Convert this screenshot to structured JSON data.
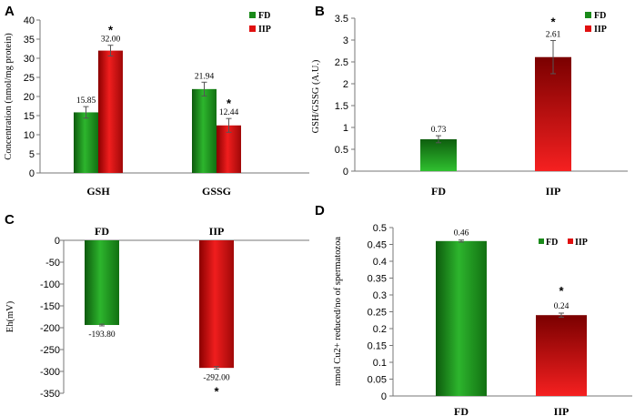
{
  "colors": {
    "fd": "#1a8a1a",
    "iip": "#e01010"
  },
  "chart_data": [
    {
      "panel": "A",
      "type": "bar",
      "categories": [
        "GSH",
        "GSSG"
      ],
      "series": [
        {
          "name": "FD",
          "values": [
            15.85,
            21.94
          ],
          "labels": [
            "15.85",
            "21.94"
          ],
          "errors": [
            1.5,
            1.8
          ]
        },
        {
          "name": "IIP",
          "values": [
            32.0,
            12.44
          ],
          "labels": [
            "32.00",
            "12.44"
          ],
          "errors": [
            1.4,
            1.8
          ]
        }
      ],
      "significance": [
        "*",
        "*"
      ],
      "ylabel": "Concentration (nmol/mg protein)",
      "ylim": [
        0,
        40
      ],
      "yticks": [
        "0",
        "5",
        "10",
        "15",
        "20",
        "25",
        "30",
        "35",
        "40"
      ],
      "legend": [
        "FD",
        "IIP"
      ]
    },
    {
      "panel": "B",
      "type": "bar",
      "categories": [
        "FD",
        "IIP"
      ],
      "values": [
        0.73,
        2.61
      ],
      "labels": [
        "0.73",
        "2.61"
      ],
      "errors": [
        0.08,
        0.38
      ],
      "significance": "*",
      "ylabel": "GSH/GSSG (A.U.)",
      "ylim": [
        0,
        3.5
      ],
      "yticks": [
        "0",
        "0.5",
        "1",
        "1.5",
        "2",
        "2.5",
        "3",
        "3.5"
      ],
      "legend": [
        "FD",
        "IIP"
      ]
    },
    {
      "panel": "C",
      "type": "bar",
      "categories": [
        "FD",
        "IIP"
      ],
      "values": [
        -193.8,
        -292.0
      ],
      "labels": [
        "-193.80",
        "-292.00"
      ],
      "errors": [
        2,
        3
      ],
      "significance": "*",
      "ylabel": "Eh(mV)",
      "ylim": [
        -350,
        0
      ],
      "yticks": [
        "0",
        "-50",
        "-100",
        "-150",
        "-200",
        "-250",
        "-300",
        "-350"
      ]
    },
    {
      "panel": "D",
      "type": "bar",
      "categories": [
        "FD",
        "IIP"
      ],
      "values": [
        0.46,
        0.24
      ],
      "labels": [
        "0.46",
        "0.24"
      ],
      "errors": [
        0.003,
        0.006
      ],
      "significance": "*",
      "ylabel": "nmol Cu2+ reduced/no of spermatozoa",
      "ylim": [
        0,
        0.5
      ],
      "yticks": [
        "0",
        "0.05",
        "0.1",
        "0.15",
        "0.2",
        "0.25",
        "0.3",
        "0.35",
        "0.4",
        "0.45",
        "0.5"
      ],
      "legend": [
        "FD",
        "IIP"
      ]
    }
  ]
}
